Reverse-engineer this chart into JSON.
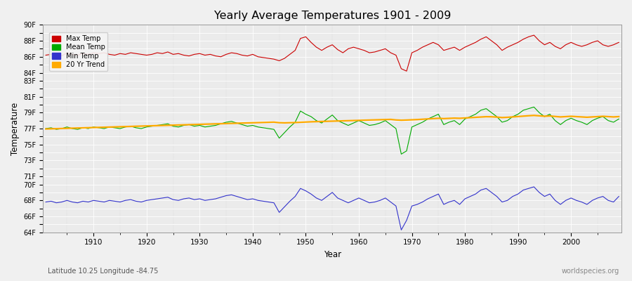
{
  "title": "Yearly Average Temperatures 1901 - 2009",
  "xlabel": "Year",
  "ylabel": "Temperature",
  "subtitle_left": "Latitude 10.25 Longitude -84.75",
  "subtitle_right": "worldspecies.org",
  "year_start": 1901,
  "year_end": 2009,
  "ylim": [
    64,
    90
  ],
  "bg_color": "#f0f0f0",
  "plot_bg_color": "#ebebeb",
  "grid_color": "#ffffff",
  "line_colors": {
    "max": "#cc0000",
    "mean": "#00aa00",
    "min": "#3333cc",
    "trend": "#ffaa00"
  },
  "legend_labels": [
    "Max Temp",
    "Mean Temp",
    "Min Temp",
    "20 Yr Trend"
  ],
  "ytick_show": [
    64,
    66,
    68,
    70,
    71,
    73,
    75,
    77,
    79,
    81,
    83,
    84,
    86,
    88,
    90
  ],
  "max_temp": [
    86.2,
    86.3,
    86.4,
    86.1,
    86.5,
    86.3,
    86.2,
    86.4,
    86.3,
    86.5,
    86.4,
    86.5,
    86.3,
    86.2,
    86.4,
    86.3,
    86.5,
    86.4,
    86.3,
    86.2,
    86.3,
    86.5,
    86.4,
    86.6,
    86.3,
    86.4,
    86.2,
    86.1,
    86.3,
    86.4,
    86.2,
    86.3,
    86.1,
    86.0,
    86.3,
    86.5,
    86.4,
    86.2,
    86.1,
    86.3,
    86.0,
    85.9,
    85.8,
    85.7,
    85.5,
    85.8,
    86.3,
    86.8,
    88.3,
    88.5,
    87.8,
    87.2,
    86.8,
    87.2,
    87.5,
    86.9,
    86.5,
    87.0,
    87.2,
    87.0,
    86.8,
    86.5,
    86.6,
    86.8,
    87.0,
    86.5,
    86.2,
    84.5,
    84.2,
    86.5,
    86.8,
    87.2,
    87.5,
    87.8,
    87.5,
    86.8,
    87.0,
    87.2,
    86.8,
    87.2,
    87.5,
    87.8,
    88.2,
    88.5,
    88.0,
    87.5,
    86.8,
    87.2,
    87.5,
    87.8,
    88.2,
    88.5,
    88.7,
    88.0,
    87.5,
    87.8,
    87.3,
    87.0,
    87.5,
    87.8,
    87.5,
    87.3,
    87.5,
    87.8,
    88.0,
    87.5,
    87.3,
    87.5,
    87.8
  ],
  "mean_temp": [
    77.0,
    77.1,
    76.9,
    77.0,
    77.2,
    77.0,
    76.9,
    77.1,
    77.0,
    77.2,
    77.1,
    77.0,
    77.2,
    77.1,
    77.0,
    77.2,
    77.3,
    77.1,
    77.0,
    77.2,
    77.3,
    77.4,
    77.5,
    77.6,
    77.3,
    77.2,
    77.4,
    77.5,
    77.3,
    77.4,
    77.2,
    77.3,
    77.4,
    77.6,
    77.8,
    77.9,
    77.7,
    77.5,
    77.3,
    77.4,
    77.2,
    77.1,
    77.0,
    76.9,
    75.8,
    76.5,
    77.2,
    77.8,
    79.2,
    78.8,
    78.5,
    78.0,
    77.7,
    78.2,
    78.7,
    78.0,
    77.7,
    77.4,
    77.7,
    78.0,
    77.7,
    77.4,
    77.5,
    77.7,
    78.0,
    77.5,
    77.0,
    73.8,
    74.2,
    77.2,
    77.5,
    77.8,
    78.2,
    78.5,
    78.8,
    77.5,
    77.8,
    78.0,
    77.5,
    78.2,
    78.5,
    78.8,
    79.3,
    79.5,
    79.0,
    78.5,
    77.8,
    78.0,
    78.5,
    78.8,
    79.3,
    79.5,
    79.7,
    79.0,
    78.5,
    78.8,
    78.0,
    77.5,
    78.0,
    78.3,
    78.0,
    77.8,
    77.5,
    78.0,
    78.3,
    78.5,
    78.0,
    77.8,
    78.2
  ],
  "min_temp": [
    67.8,
    67.9,
    67.7,
    67.8,
    68.0,
    67.8,
    67.7,
    67.9,
    67.8,
    68.0,
    67.9,
    67.8,
    68.0,
    67.9,
    67.8,
    68.0,
    68.1,
    67.9,
    67.8,
    68.0,
    68.1,
    68.2,
    68.3,
    68.4,
    68.1,
    68.0,
    68.2,
    68.3,
    68.1,
    68.2,
    68.0,
    68.1,
    68.2,
    68.4,
    68.6,
    68.7,
    68.5,
    68.3,
    68.1,
    68.2,
    68.0,
    67.9,
    67.8,
    67.7,
    66.5,
    67.2,
    67.9,
    68.5,
    69.5,
    69.2,
    68.8,
    68.3,
    68.0,
    68.5,
    69.0,
    68.3,
    68.0,
    67.7,
    68.0,
    68.3,
    68.0,
    67.7,
    67.8,
    68.0,
    68.3,
    67.8,
    67.3,
    64.3,
    65.5,
    67.3,
    67.5,
    67.8,
    68.2,
    68.5,
    68.8,
    67.5,
    67.8,
    68.0,
    67.5,
    68.2,
    68.5,
    68.8,
    69.3,
    69.5,
    69.0,
    68.5,
    67.8,
    68.0,
    68.5,
    68.8,
    69.3,
    69.5,
    69.7,
    69.0,
    68.5,
    68.8,
    68.0,
    67.5,
    68.0,
    68.3,
    68.0,
    67.8,
    67.5,
    68.0,
    68.3,
    68.5,
    68.0,
    67.8,
    68.5
  ],
  "trend": [
    76.95,
    76.97,
    76.99,
    77.01,
    77.03,
    77.05,
    77.07,
    77.09,
    77.11,
    77.13,
    77.15,
    77.17,
    77.19,
    77.21,
    77.23,
    77.25,
    77.27,
    77.29,
    77.31,
    77.33,
    77.35,
    77.37,
    77.39,
    77.41,
    77.43,
    77.45,
    77.47,
    77.49,
    77.51,
    77.53,
    77.55,
    77.57,
    77.59,
    77.61,
    77.63,
    77.65,
    77.67,
    77.69,
    77.71,
    77.73,
    77.75,
    77.77,
    77.79,
    77.81,
    77.74,
    77.72,
    77.74,
    77.76,
    77.79,
    77.82,
    77.85,
    77.87,
    77.89,
    77.91,
    77.93,
    77.95,
    77.97,
    77.99,
    78.01,
    78.03,
    78.05,
    78.07,
    78.09,
    78.11,
    78.13,
    78.15,
    78.08,
    78.05,
    78.07,
    78.1,
    78.13,
    78.17,
    78.21,
    78.25,
    78.29,
    78.25,
    78.28,
    78.31,
    78.29,
    78.33,
    78.37,
    78.41,
    78.45,
    78.49,
    78.48,
    78.44,
    78.38,
    78.41,
    78.46,
    78.51,
    78.56,
    78.61,
    78.65,
    78.6,
    78.55,
    78.58,
    78.52,
    78.46,
    78.5,
    78.54,
    78.5,
    78.46,
    78.42,
    78.46,
    78.5,
    78.54,
    78.5,
    78.46,
    78.5
  ]
}
